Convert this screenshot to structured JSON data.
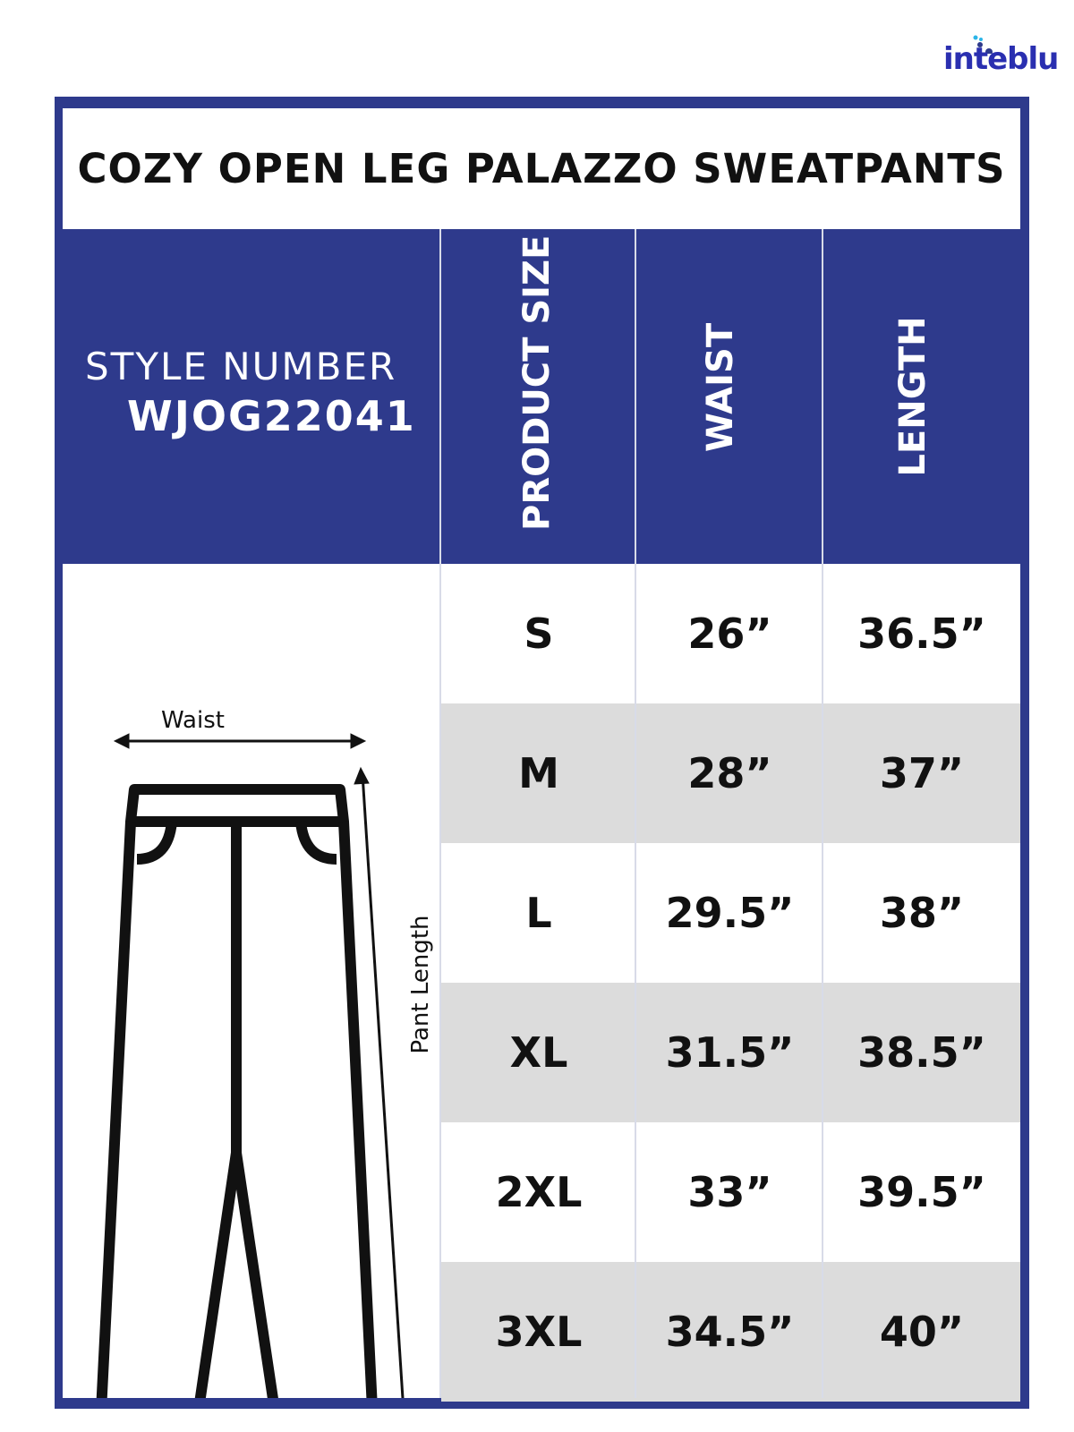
{
  "brand": {
    "logo_text": "inteblu",
    "color": "#2a2fb0"
  },
  "title": "COZY OPEN LEG PALAZZO SWEATPANTS",
  "style": {
    "label": "STYLE NUMBER",
    "number": "WJOG22041"
  },
  "headers": [
    "PRODUCT SIZE",
    "WAIST",
    "LENGTH"
  ],
  "diagram": {
    "waist_label": "Waist",
    "length_label": "Pant Length"
  },
  "rows": [
    {
      "size": "S",
      "waist": "26”",
      "length": "36.5”"
    },
    {
      "size": "M",
      "waist": "28”",
      "length": "37”"
    },
    {
      "size": "L",
      "waist": "29.5”",
      "length": "38”"
    },
    {
      "size": "XL",
      "waist": "31.5”",
      "length": "38.5”"
    },
    {
      "size": "2XL",
      "waist": "33”",
      "length": "39.5”"
    },
    {
      "size": "3XL",
      "waist": "34.5”",
      "length": "40”"
    }
  ],
  "colors": {
    "frame": "#2e3a8c",
    "alt_row": "#dcdcdc"
  }
}
